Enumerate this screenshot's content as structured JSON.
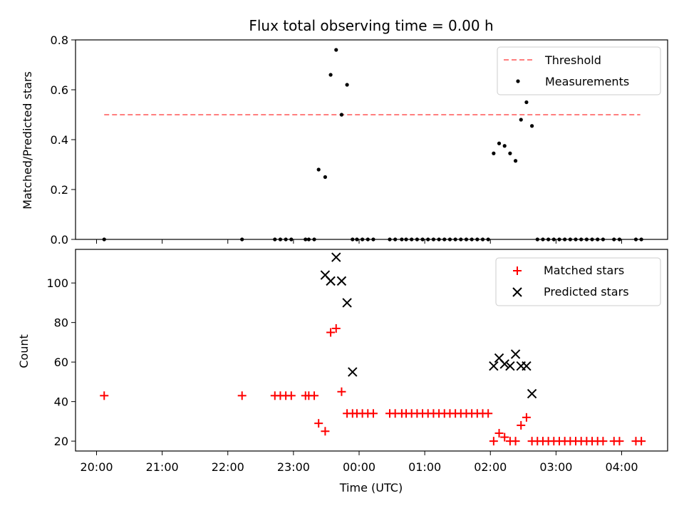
{
  "chart_data": [
    {
      "type": "line+scatter",
      "title": "Flux total observing time = 0.00 h",
      "ylabel": "Matched/Predicted stars",
      "xlabel": "",
      "ylim": [
        0,
        0.8
      ],
      "yticks": [
        "0.0",
        "0.2",
        "0.4",
        "0.6",
        "0.8"
      ],
      "legend_position": "top-right",
      "threshold": {
        "name": "Threshold",
        "value": 0.5,
        "x_range": [
          "20:07",
          "04:17"
        ],
        "color": "#ff7f7f",
        "style": "dashed"
      },
      "series": [
        {
          "name": "Measurements",
          "color": "#000000",
          "marker": "dot",
          "x": [
            "20:07",
            "22:13",
            "22:43",
            "22:48",
            "22:53",
            "22:58",
            "23:11",
            "23:14",
            "23:19",
            "23:23",
            "23:29",
            "23:34",
            "23:39",
            "23:44",
            "23:49",
            "23:54",
            "23:58",
            "00:03",
            "00:08",
            "00:13",
            "00:28",
            "00:33",
            "00:39",
            "00:43",
            "00:48",
            "00:53",
            "00:58",
            "01:03",
            "01:08",
            "01:13",
            "01:18",
            "01:23",
            "01:28",
            "01:33",
            "01:38",
            "01:43",
            "01:48",
            "01:53",
            "01:58",
            "02:03",
            "02:08",
            "02:13",
            "02:18",
            "02:23",
            "02:28",
            "02:33",
            "02:38",
            "02:43",
            "02:48",
            "02:53",
            "02:58",
            "03:03",
            "03:08",
            "03:13",
            "03:18",
            "03:23",
            "03:28",
            "03:33",
            "03:38",
            "03:43",
            "03:53",
            "03:58",
            "04:13",
            "04:18"
          ],
          "values": [
            0,
            0,
            0,
            0,
            0,
            0,
            0,
            0,
            0,
            0.28,
            0.25,
            0.66,
            0.76,
            0.5,
            0.62,
            0,
            0,
            0,
            0,
            0,
            0,
            0,
            0,
            0,
            0,
            0,
            0,
            0,
            0,
            0,
            0,
            0,
            0,
            0,
            0,
            0,
            0,
            0,
            0,
            0.345,
            0.385,
            0.375,
            0.345,
            0.315,
            0.48,
            0.55,
            0.455,
            0,
            0,
            0,
            0,
            0,
            0,
            0,
            0,
            0,
            0,
            0,
            0,
            0,
            0,
            0,
            0,
            0
          ]
        }
      ]
    },
    {
      "type": "scatter",
      "title": "",
      "ylabel": "Count",
      "xlabel": "Time (UTC)",
      "ylim": [
        15,
        117
      ],
      "yticks": [
        "20",
        "40",
        "60",
        "80",
        "100"
      ],
      "xticks": [
        "20:00",
        "21:00",
        "22:00",
        "23:00",
        "00:00",
        "01:00",
        "02:00",
        "03:00",
        "04:00"
      ],
      "legend_position": "top-right",
      "series": [
        {
          "name": "Matched stars",
          "color": "#ff0000",
          "marker": "plus",
          "x": [
            "20:07",
            "22:13",
            "22:43",
            "22:48",
            "22:53",
            "22:58",
            "23:11",
            "23:14",
            "23:19",
            "23:23",
            "23:29",
            "23:34",
            "23:39",
            "23:44",
            "23:49",
            "23:54",
            "23:58",
            "00:03",
            "00:08",
            "00:13",
            "00:28",
            "00:33",
            "00:39",
            "00:43",
            "00:48",
            "00:53",
            "00:58",
            "01:03",
            "01:08",
            "01:13",
            "01:18",
            "01:23",
            "01:28",
            "01:33",
            "01:38",
            "01:43",
            "01:48",
            "01:53",
            "01:58",
            "02:03",
            "02:08",
            "02:13",
            "02:18",
            "02:23",
            "02:28",
            "02:33",
            "02:38",
            "02:43",
            "02:48",
            "02:53",
            "02:58",
            "03:03",
            "03:08",
            "03:13",
            "03:18",
            "03:23",
            "03:28",
            "03:33",
            "03:38",
            "03:43",
            "03:53",
            "03:58",
            "04:13",
            "04:18"
          ],
          "values": [
            43,
            43,
            43,
            43,
            43,
            43,
            43,
            43,
            43,
            29,
            25,
            75,
            77,
            45,
            34,
            34,
            34,
            34,
            34,
            34,
            34,
            34,
            34,
            34,
            34,
            34,
            34,
            34,
            34,
            34,
            34,
            34,
            34,
            34,
            34,
            34,
            34,
            34,
            34,
            20,
            24,
            22,
            20,
            20,
            28,
            32,
            20,
            20,
            20,
            20,
            20,
            20,
            20,
            20,
            20,
            20,
            20,
            20,
            20,
            20,
            20,
            20,
            20,
            20
          ]
        },
        {
          "name": "Predicted stars",
          "color": "#000000",
          "marker": "x",
          "x": [
            "23:29",
            "23:34",
            "23:39",
            "23:44",
            "23:49",
            "23:54",
            "02:03",
            "02:08",
            "02:13",
            "02:18",
            "02:23",
            "02:28",
            "02:33",
            "02:38"
          ],
          "values": [
            104,
            101,
            113,
            101,
            90,
            55,
            58,
            62,
            59,
            58,
            64,
            58,
            58,
            44
          ]
        }
      ]
    }
  ]
}
